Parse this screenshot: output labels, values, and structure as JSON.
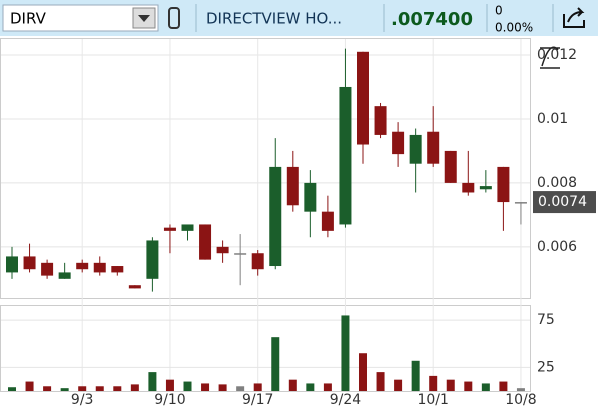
{
  "header": {
    "symbol": "DIRV",
    "name": "DIRECTVIEW HO...",
    "price": ".007400",
    "change": "0",
    "change_percent": "0.00%"
  },
  "chart_data": [
    {
      "type": "candlestick",
      "categories": [
        null,
        null,
        null,
        null,
        "9/3",
        null,
        null,
        null,
        null,
        "9/10",
        null,
        null,
        null,
        null,
        "9/17",
        null,
        null,
        null,
        null,
        "9/24",
        null,
        null,
        null,
        null,
        "10/1",
        null,
        null,
        null,
        null,
        "10/8"
      ],
      "open": [
        0.0052,
        0.0057,
        0.0055,
        0.005,
        0.0055,
        0.0055,
        0.0054,
        0.0048,
        0.005,
        0.0066,
        0.0065,
        0.0067,
        0.006,
        0.0058,
        0.0058,
        0.0054,
        0.0085,
        0.0071,
        0.0071,
        0.0067,
        0.0121,
        0.0104,
        0.0096,
        0.0086,
        0.0096,
        0.009,
        0.008,
        0.0078,
        0.0085,
        0.0074
      ],
      "high": [
        0.006,
        0.0061,
        0.0056,
        0.0055,
        0.0056,
        0.0057,
        0.0054,
        0.0048,
        0.0063,
        0.0067,
        0.0067,
        0.0067,
        0.0062,
        0.0064,
        0.0059,
        0.0094,
        0.009,
        0.0084,
        0.0076,
        0.0122,
        0.0121,
        0.0105,
        0.0099,
        0.0097,
        0.0104,
        0.009,
        0.009,
        0.0084,
        0.0085,
        0.0074
      ],
      "low": [
        0.005,
        0.0052,
        0.005,
        0.005,
        0.0052,
        0.0051,
        0.0051,
        0.0047,
        0.0046,
        0.0058,
        0.0062,
        0.0056,
        0.0055,
        0.0048,
        0.0051,
        0.0053,
        0.0071,
        0.0063,
        0.0063,
        0.0066,
        0.0086,
        0.0094,
        0.0085,
        0.0077,
        0.0085,
        0.008,
        0.0076,
        0.0077,
        0.0065,
        0.0067
      ],
      "close": [
        0.0057,
        0.0053,
        0.0051,
        0.0052,
        0.0053,
        0.0052,
        0.0052,
        0.0047,
        0.0062,
        0.0065,
        0.0067,
        0.0056,
        0.0058,
        0.0058,
        0.0053,
        0.0085,
        0.0073,
        0.008,
        0.0065,
        0.011,
        0.0092,
        0.0095,
        0.0089,
        0.0095,
        0.0086,
        0.008,
        0.0077,
        0.0079,
        0.0074,
        0.0074
      ],
      "up_color": "#1b5e2b",
      "down_color": "#8b1414",
      "flat_color": "#808080",
      "ylim": [
        0.0044,
        0.0125
      ],
      "yticks": [
        0.006,
        0.008,
        0.01,
        0.012
      ],
      "grid": true,
      "last_price": 0.0074
    },
    {
      "type": "bar",
      "values": [
        4,
        10,
        5,
        3,
        5,
        5,
        5,
        7,
        20,
        12,
        10,
        8,
        7,
        5,
        8,
        57,
        12,
        8,
        8,
        80,
        40,
        20,
        12,
        32,
        16,
        12,
        10,
        8,
        10,
        3
      ],
      "ylim": [
        0,
        90
      ],
      "yticks": [
        25,
        75
      ],
      "grid": true
    }
  ]
}
